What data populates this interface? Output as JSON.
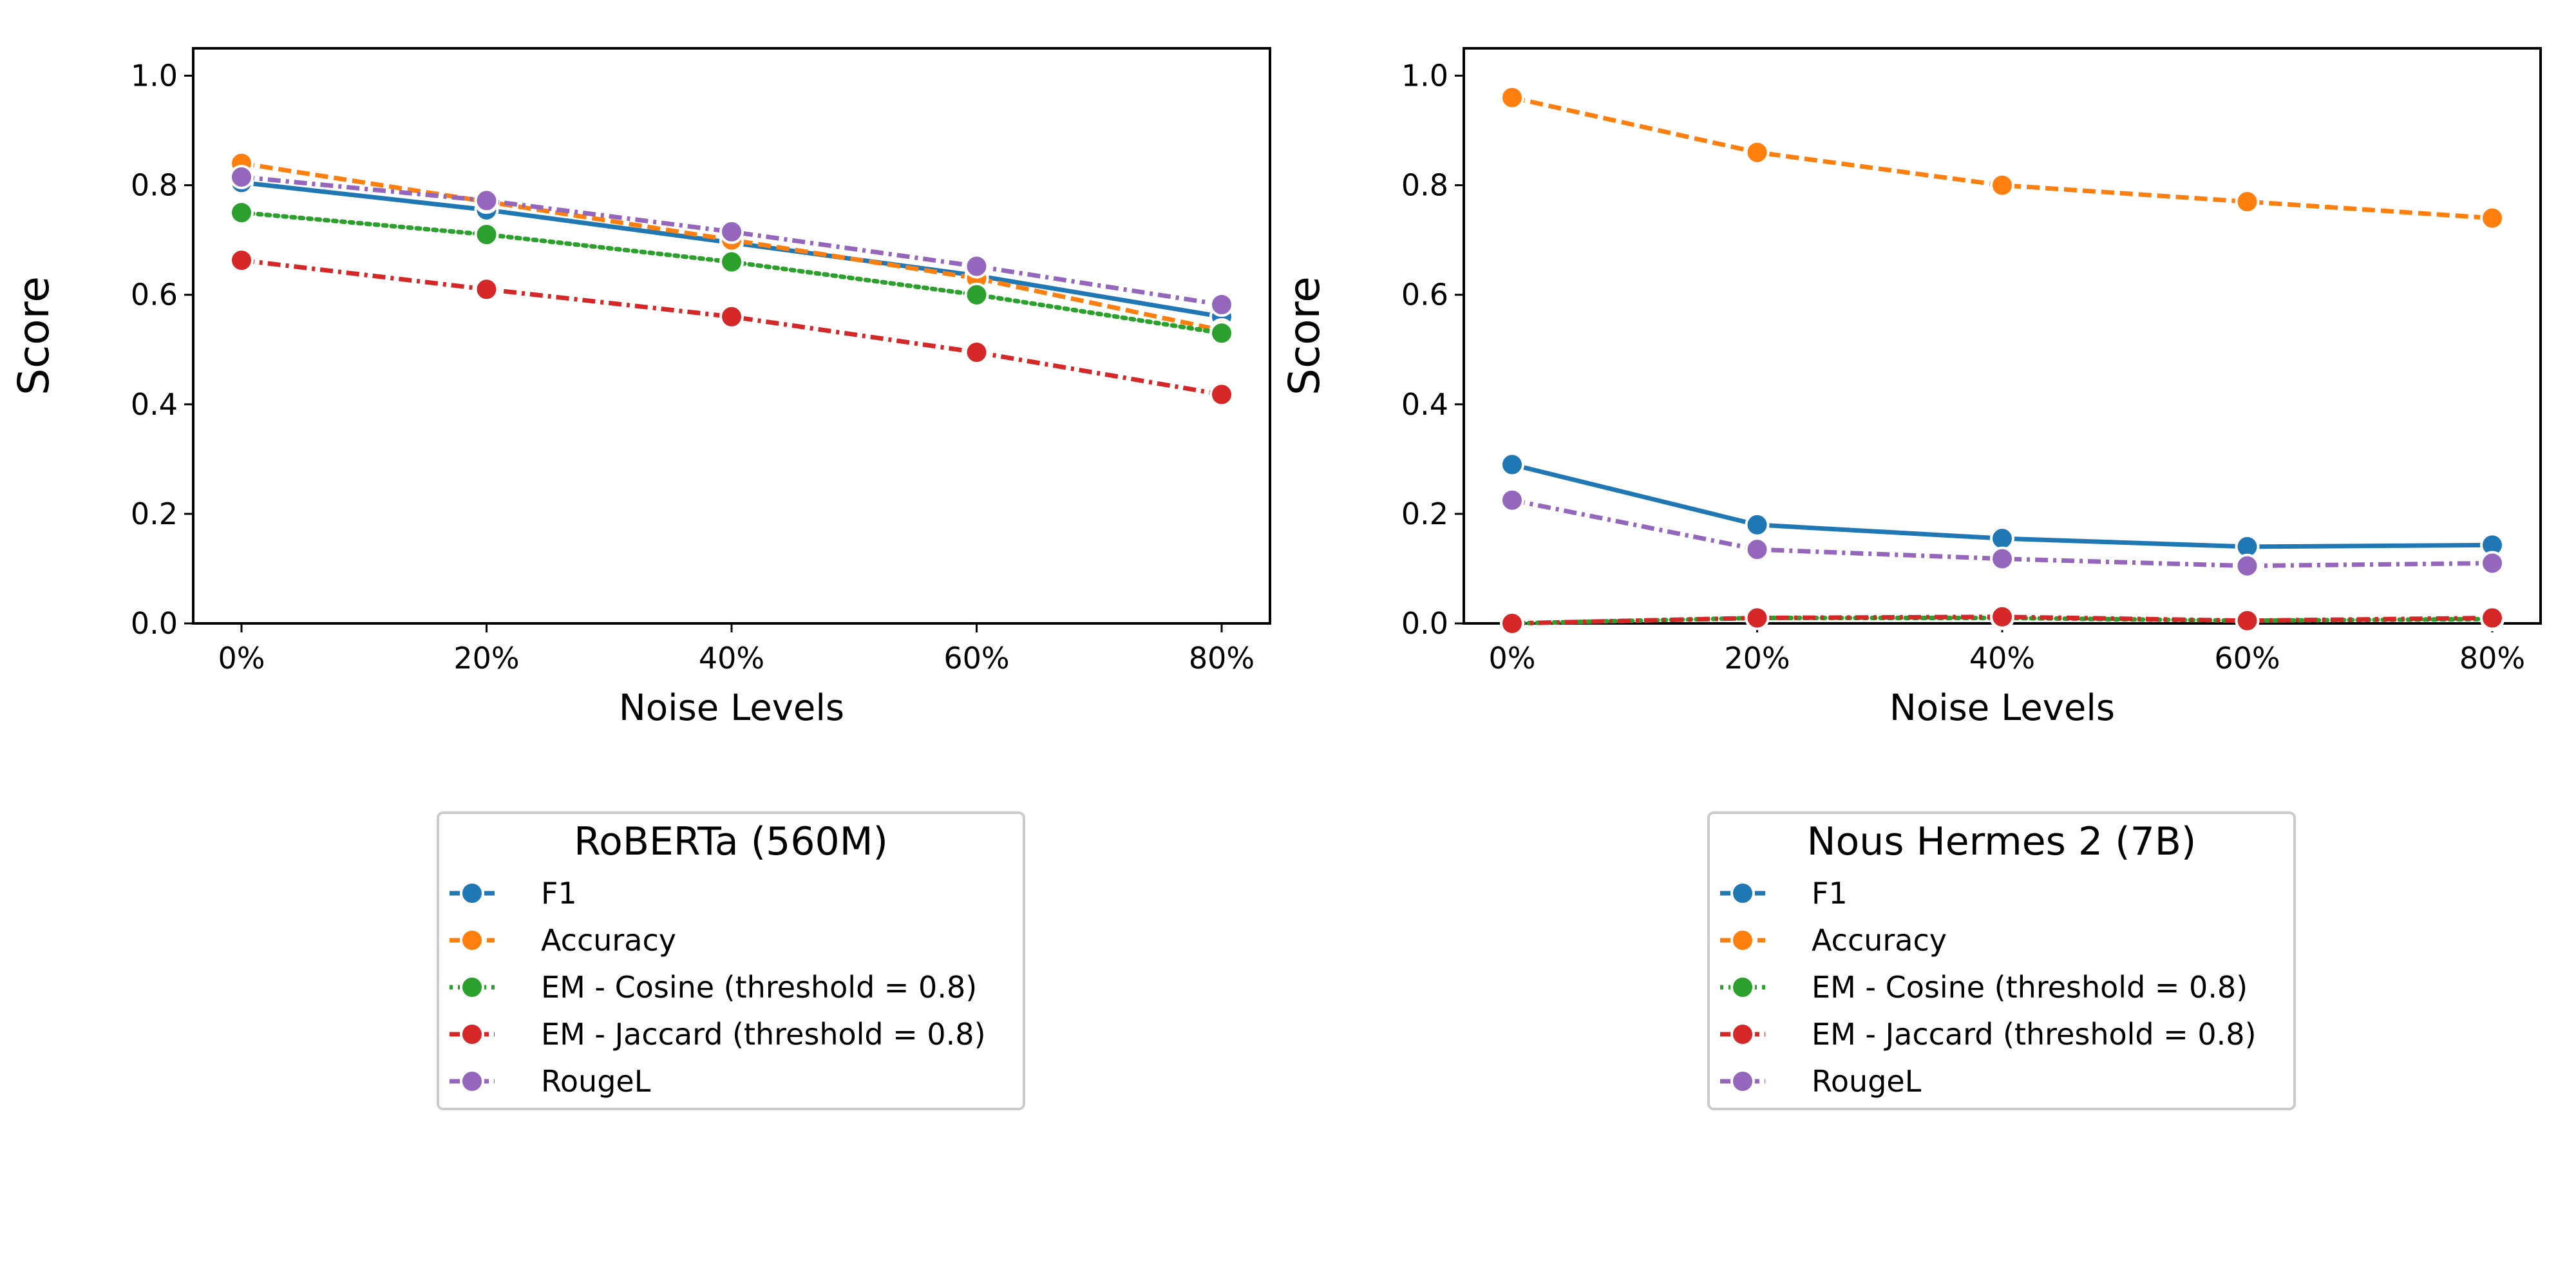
{
  "chart_data": [
    {
      "type": "line",
      "title": "",
      "xlabel": "Noise Levels",
      "ylabel": "Score",
      "ylim": [
        0.0,
        1.05
      ],
      "x": [
        "0%",
        "20%",
        "40%",
        "60%",
        "80%"
      ],
      "yticks": [
        "0.0",
        "0.2",
        "0.4",
        "0.6",
        "0.8",
        "1.0"
      ],
      "legend": {
        "title": "RoBERTa (560M)",
        "placement": "below"
      },
      "series": [
        {
          "name": "F1",
          "color": "#1f77b4",
          "style": "solid",
          "values": [
            0.805,
            0.755,
            0.695,
            0.635,
            0.56
          ]
        },
        {
          "name": "Accuracy",
          "color": "#ff7f0e",
          "style": "dashed",
          "values": [
            0.84,
            0.77,
            0.7,
            0.63,
            0.535
          ]
        },
        {
          "name": "EM - Cosine (threshold = 0.8)",
          "color": "#2ca02c",
          "style": "dotted",
          "values": [
            0.75,
            0.71,
            0.66,
            0.6,
            0.53
          ]
        },
        {
          "name": "EM - Jaccard (threshold = 0.8)",
          "color": "#d62728",
          "style": "dashdot",
          "values": [
            0.663,
            0.61,
            0.56,
            0.495,
            0.418
          ]
        },
        {
          "name": "RougeL",
          "color": "#9467bd",
          "style": "dashdot",
          "values": [
            0.815,
            0.772,
            0.715,
            0.652,
            0.582
          ]
        }
      ]
    },
    {
      "type": "line",
      "title": "",
      "xlabel": "Noise Levels",
      "ylabel": "Score",
      "ylim": [
        0.0,
        1.05
      ],
      "x": [
        "0%",
        "20%",
        "40%",
        "60%",
        "80%"
      ],
      "yticks": [
        "0.0",
        "0.2",
        "0.4",
        "0.6",
        "0.8",
        "1.0"
      ],
      "legend": {
        "title": "Nous Hermes 2 (7B)",
        "placement": "below"
      },
      "series": [
        {
          "name": "F1",
          "color": "#1f77b4",
          "style": "solid",
          "values": [
            0.29,
            0.18,
            0.155,
            0.14,
            0.143
          ]
        },
        {
          "name": "Accuracy",
          "color": "#ff7f0e",
          "style": "dashed",
          "values": [
            0.96,
            0.86,
            0.8,
            0.77,
            0.74
          ]
        },
        {
          "name": "EM - Cosine (threshold = 0.8)",
          "color": "#2ca02c",
          "style": "dotted",
          "values": [
            0.0,
            0.01,
            0.01,
            0.005,
            0.008
          ]
        },
        {
          "name": "EM - Jaccard (threshold = 0.8)",
          "color": "#d62728",
          "style": "dashdot",
          "values": [
            0.0,
            0.01,
            0.012,
            0.005,
            0.01
          ]
        },
        {
          "name": "RougeL",
          "color": "#9467bd",
          "style": "dashdot",
          "values": [
            0.225,
            0.135,
            0.118,
            0.105,
            0.11
          ]
        }
      ]
    }
  ]
}
